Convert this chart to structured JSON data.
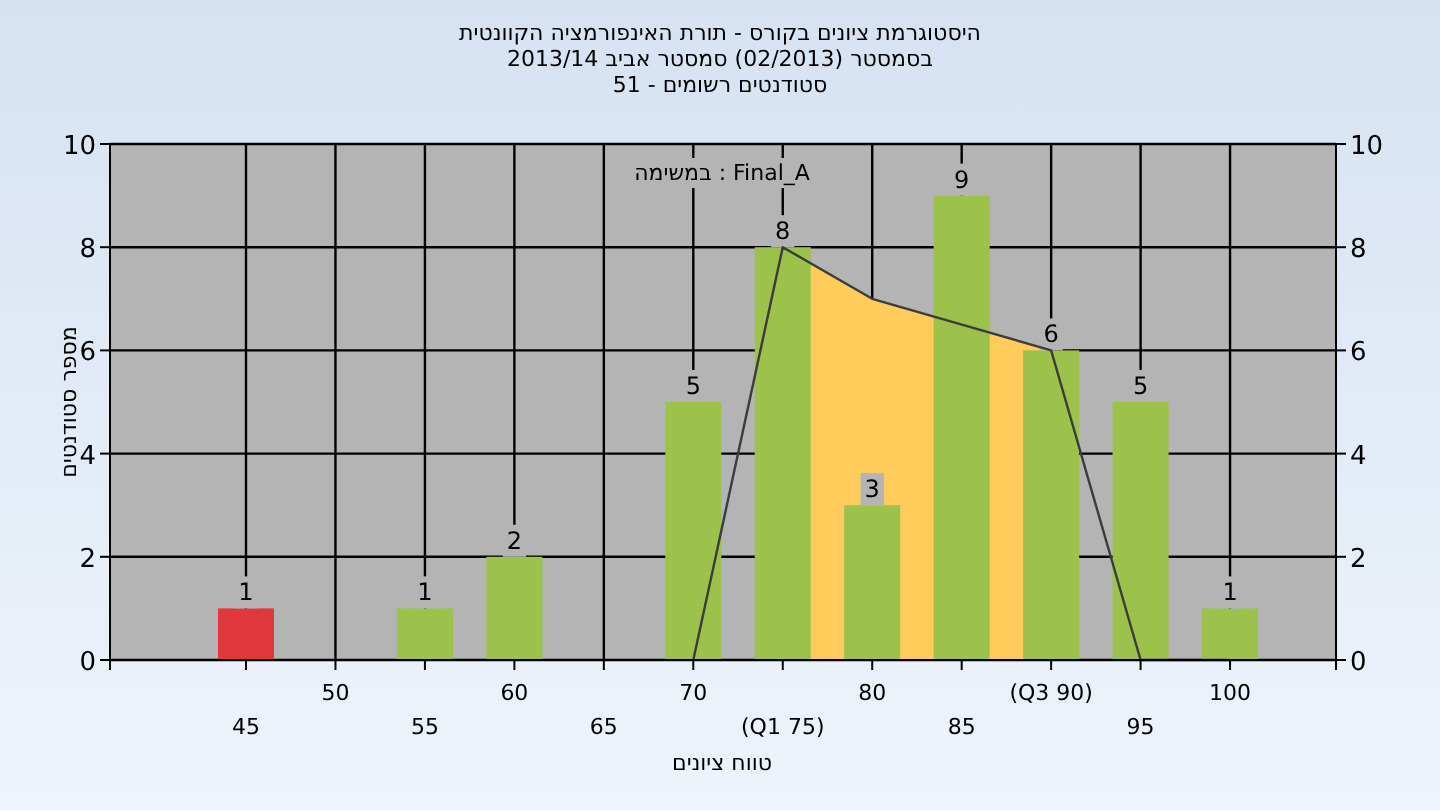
{
  "chart_data": {
    "type": "bar",
    "title": "היסטוגרמת ציונים בקורס - תורת האינפורמציה הקוונטית",
    "subtitle": "בסמסטר  (02/2013)  סמסטר אביב 2013/14\nסטודנטים רשומים - 51",
    "xlabel": "טווח ציונים",
    "ylabel": "מספר סטודנטים",
    "annotations": [
      "Final_A : במשימה"
    ],
    "categories": [
      "45",
      "50",
      "55",
      "60",
      "65",
      "70",
      "(Q1 75)",
      "80",
      "85",
      "(Q3 90)",
      "95",
      "100"
    ],
    "series": [
      {
        "type": "area",
        "color": "#ffcc5c",
        "values": [
          null,
          null,
          null,
          null,
          null,
          null,
          8,
          7,
          null,
          6,
          null,
          null
        ]
      },
      {
        "type": "bar",
        "colors": [
          "#e0383c",
          "#9cc24c",
          "#9cc24c",
          "#9cc24c",
          "#9cc24c",
          "#9cc24c",
          "#9cc24c",
          "#9cc24c",
          "#9cc24c",
          "#9cc24c",
          "#9cc24c",
          "#9cc24c"
        ],
        "values": [
          1,
          0,
          1,
          2,
          0,
          5,
          8,
          3,
          9,
          6,
          5,
          1
        ],
        "value_labels": [
          "1",
          null,
          "1",
          "2",
          null,
          "5",
          "8",
          "3",
          "9",
          "6",
          "5",
          "1"
        ]
      },
      {
        "type": "line",
        "color": "#3c3c3c",
        "values": [
          null,
          null,
          null,
          null,
          null,
          0,
          8,
          7,
          null,
          6,
          0,
          0
        ]
      }
    ],
    "ylim": [
      0,
      10
    ],
    "yticks": [
      0,
      2,
      4,
      6,
      8,
      10
    ],
    "y2lim": [
      0,
      10
    ],
    "y2ticks": [
      0,
      2,
      4,
      6,
      8,
      10
    ],
    "grid": true
  }
}
